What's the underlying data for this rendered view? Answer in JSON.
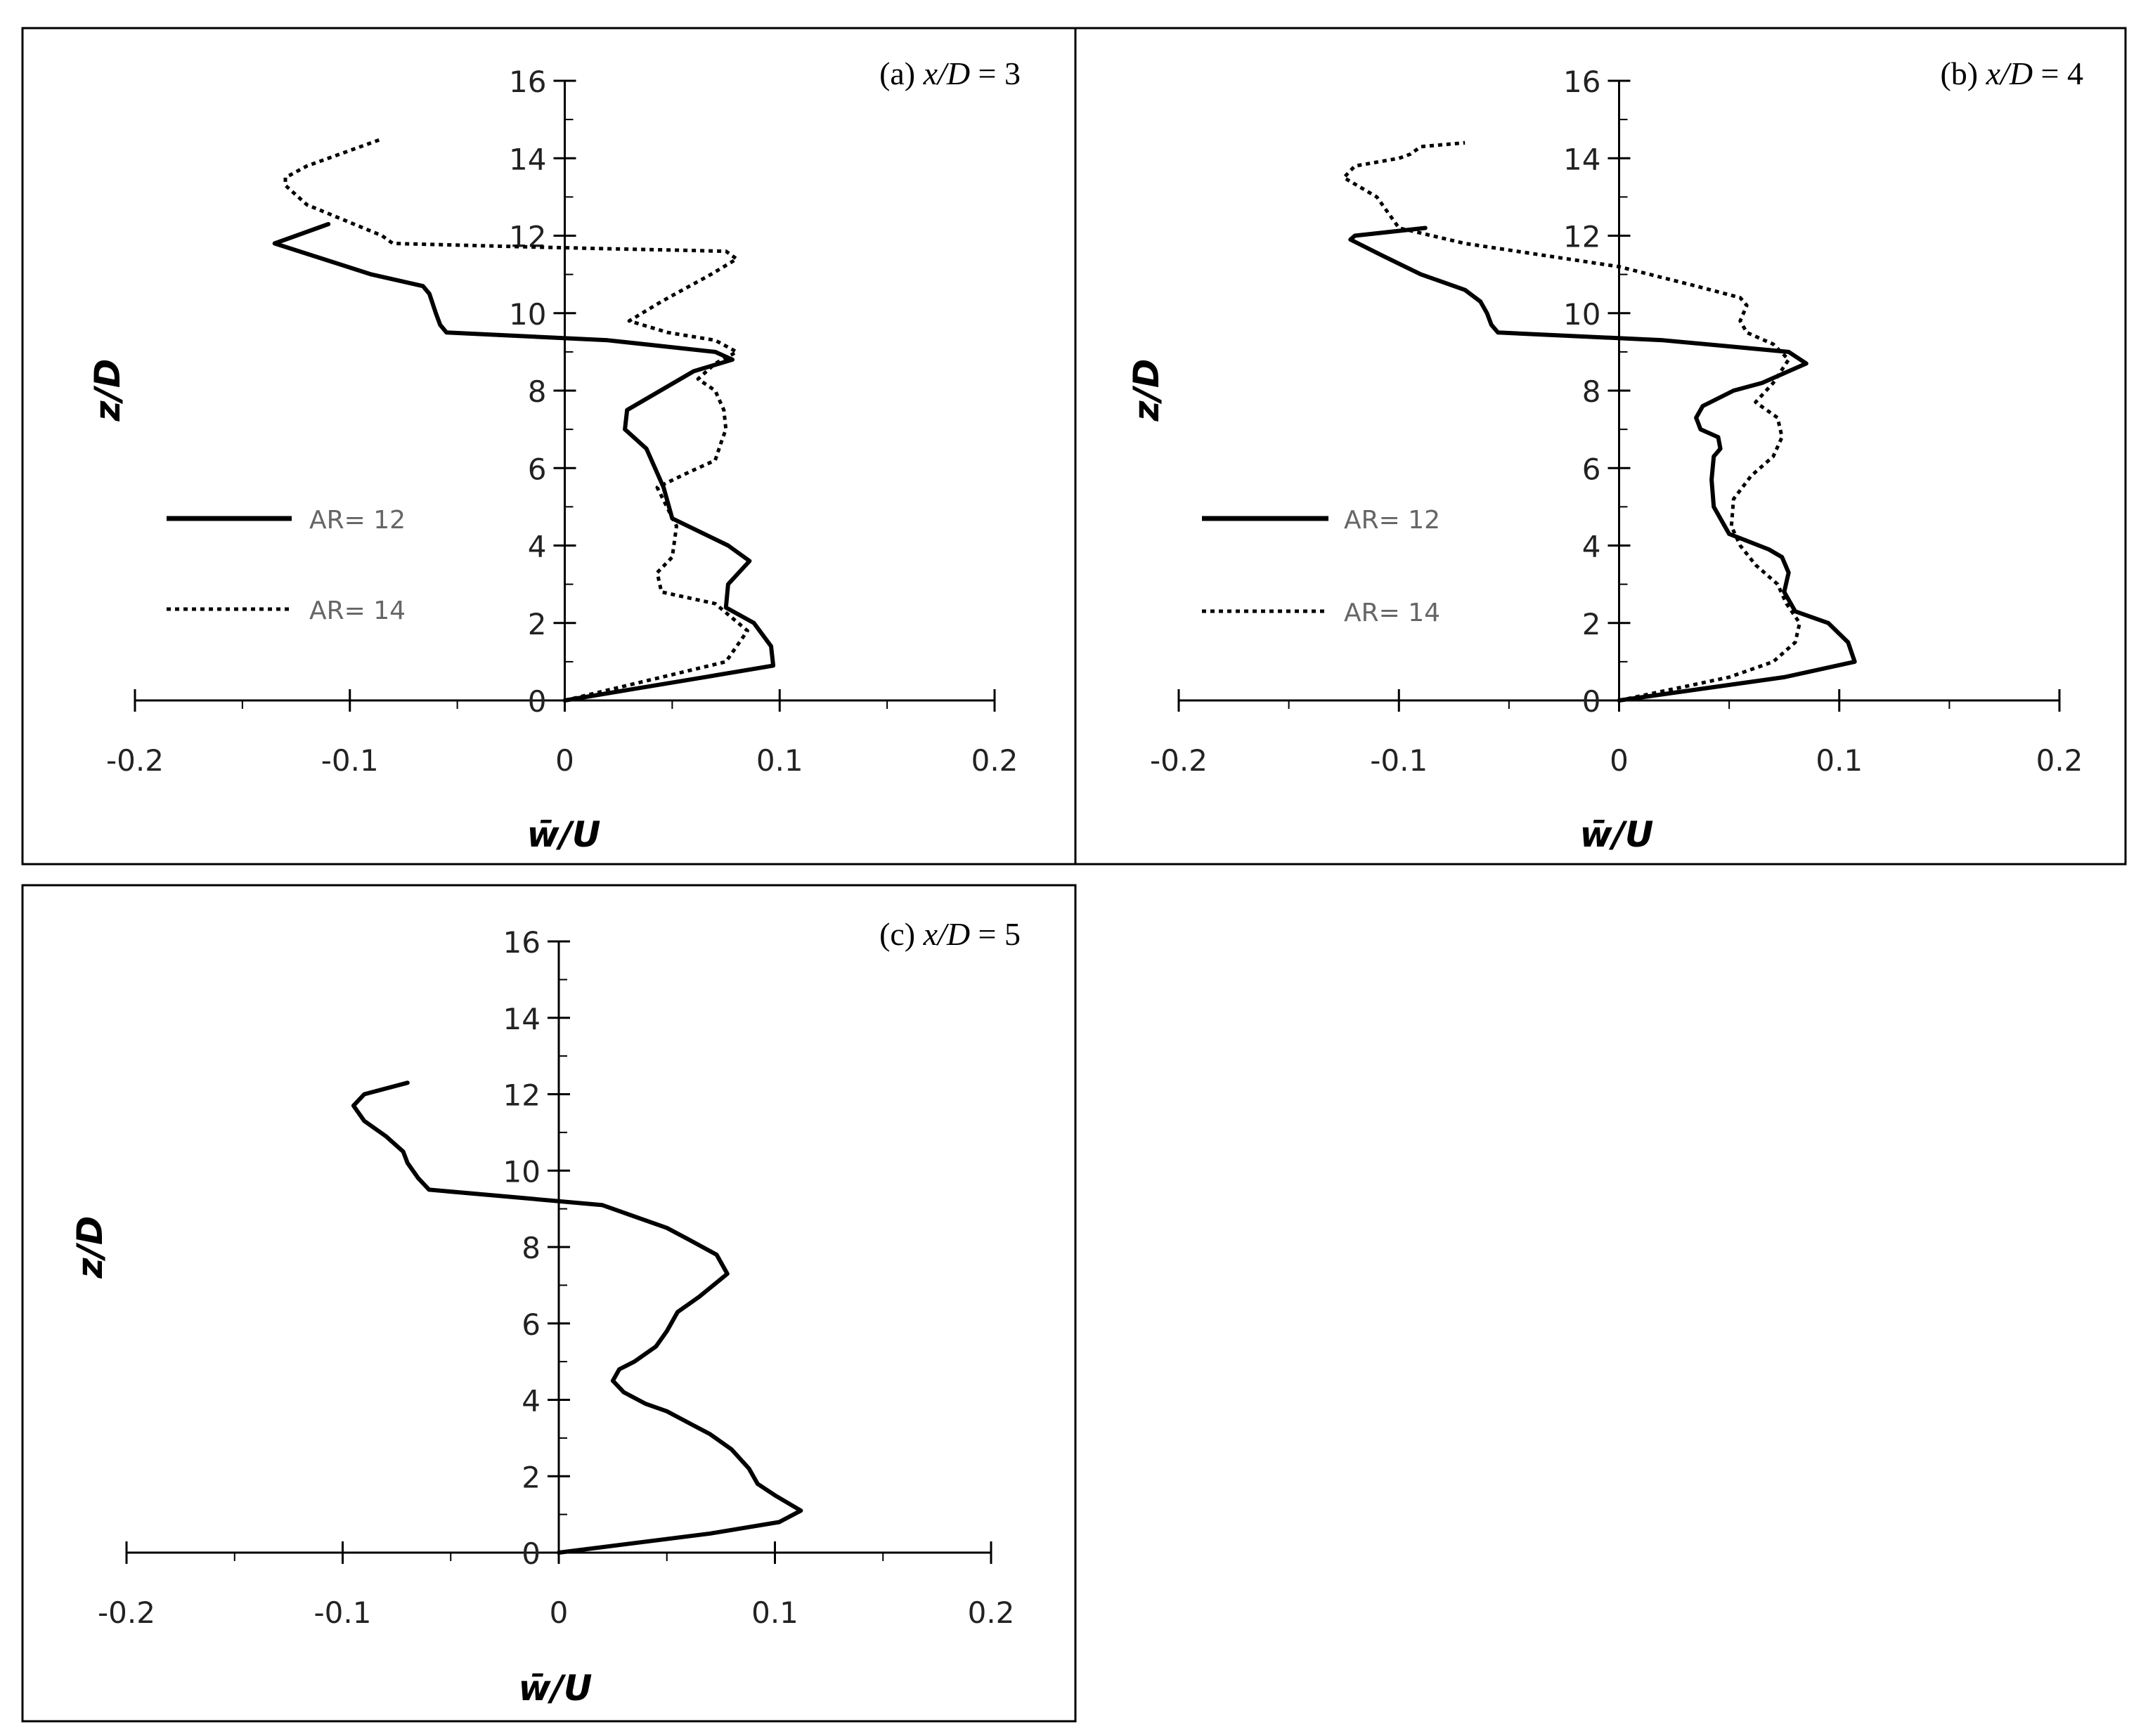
{
  "chart_data": [
    {
      "type": "line",
      "panel_label": "(a) ",
      "panel_var": "x/D",
      "panel_value": " = 3",
      "xlabel": "w̄/U",
      "ylabel": "z/D",
      "xlim": [
        -0.2,
        0.2
      ],
      "ylim": [
        0,
        16
      ],
      "xticks": [
        -0.2,
        -0.1,
        0,
        0.1,
        0.2
      ],
      "xtick_labels": [
        "-0.2",
        "-0.1",
        "0",
        "0.1",
        "0.2"
      ],
      "yticks": [
        0,
        2,
        4,
        6,
        8,
        10,
        12,
        14,
        16
      ],
      "ytick_labels": [
        "0",
        "2",
        "4",
        "6",
        "8",
        "10",
        "12",
        "14",
        "16"
      ],
      "legend": "left",
      "series": [
        {
          "name": "AR= 12",
          "style": "solid",
          "x": [
            0,
            0.065,
            0.097,
            0.096,
            0.088,
            0.075,
            0.076,
            0.086,
            0.076,
            0.05,
            0.046,
            0.038,
            0.028,
            0.029,
            0.06,
            0.078,
            0.07,
            0.02,
            -0.055,
            -0.058,
            -0.06,
            -0.063,
            -0.066,
            -0.09,
            -0.135,
            -0.13,
            -0.11
          ],
          "y": [
            0,
            0.6,
            0.9,
            1.4,
            2.0,
            2.4,
            3.0,
            3.6,
            4.0,
            4.7,
            5.5,
            6.5,
            7.0,
            7.5,
            8.5,
            8.8,
            9.0,
            9.3,
            9.5,
            9.7,
            10.0,
            10.5,
            10.7,
            11.0,
            11.8,
            11.9,
            12.3
          ]
        },
        {
          "name": "AR= 14",
          "style": "dotted",
          "x": [
            0,
            0.075,
            0.085,
            0.07,
            0.045,
            0.043,
            0.05,
            0.052,
            0.043,
            0.058,
            0.07,
            0.073,
            0.075,
            0.074,
            0.07,
            0.062,
            0.07,
            0.08,
            0.07,
            0.048,
            0.03,
            0.045,
            0.068,
            0.08,
            0.075,
            -0.01,
            -0.08,
            -0.085,
            -0.12,
            -0.13,
            -0.13,
            -0.12,
            -0.085
          ],
          "y": [
            0,
            1.0,
            1.8,
            2.5,
            2.8,
            3.3,
            3.7,
            4.5,
            5.5,
            5.9,
            6.2,
            6.7,
            7.0,
            7.5,
            8.0,
            8.3,
            8.7,
            9.0,
            9.3,
            9.5,
            9.8,
            10.3,
            11.0,
            11.4,
            11.6,
            11.7,
            11.8,
            12.0,
            12.8,
            13.3,
            13.5,
            13.8,
            14.5
          ]
        }
      ]
    },
    {
      "type": "line",
      "panel_label": "(b) ",
      "panel_var": "x/D",
      "panel_value": " = 4",
      "xlabel": "w̄/U",
      "ylabel": "z/D",
      "xlim": [
        -0.2,
        0.2
      ],
      "ylim": [
        0,
        16
      ],
      "xticks": [
        -0.2,
        -0.1,
        0,
        0.1,
        0.2
      ],
      "xtick_labels": [
        "-0.2",
        "-0.1",
        "0",
        "0.1",
        "0.2"
      ],
      "yticks": [
        0,
        2,
        4,
        6,
        8,
        10,
        12,
        14,
        16
      ],
      "ytick_labels": [
        "0",
        "2",
        "4",
        "6",
        "8",
        "10",
        "12",
        "14",
        "16"
      ],
      "legend": "left",
      "series": [
        {
          "name": "AR= 12",
          "style": "solid",
          "x": [
            0,
            0.075,
            0.107,
            0.104,
            0.095,
            0.08,
            0.075,
            0.077,
            0.074,
            0.068,
            0.05,
            0.043,
            0.042,
            0.043,
            0.046,
            0.045,
            0.037,
            0.035,
            0.038,
            0.052,
            0.065,
            0.085,
            0.077,
            0.02,
            -0.055,
            -0.058,
            -0.06,
            -0.063,
            -0.07,
            -0.08,
            -0.09,
            -0.108,
            -0.122,
            -0.12,
            -0.088
          ],
          "y": [
            0,
            0.6,
            1.0,
            1.5,
            2.0,
            2.3,
            2.8,
            3.3,
            3.7,
            3.9,
            4.3,
            5.0,
            5.7,
            6.3,
            6.5,
            6.8,
            7.0,
            7.3,
            7.6,
            8.0,
            8.2,
            8.7,
            9.0,
            9.3,
            9.5,
            9.7,
            10.0,
            10.3,
            10.6,
            10.8,
            11.0,
            11.5,
            11.9,
            12.0,
            12.2
          ]
        },
        {
          "name": "AR= 14",
          "style": "dotted",
          "x": [
            0,
            0.05,
            0.07,
            0.08,
            0.082,
            0.076,
            0.072,
            0.062,
            0.055,
            0.051,
            0.052,
            0.06,
            0.07,
            0.074,
            0.072,
            0.062,
            0.07,
            0.077,
            0.07,
            0.058,
            0.055,
            0.058,
            0.055,
            0.035,
            0.0,
            -0.07,
            -0.1,
            -0.105,
            -0.11,
            -0.125,
            -0.12,
            -0.1,
            -0.095,
            -0.09,
            -0.07
          ],
          "y": [
            0,
            0.6,
            1.0,
            1.5,
            2.0,
            2.5,
            3.0,
            3.5,
            4.0,
            4.5,
            5.2,
            5.8,
            6.3,
            6.8,
            7.3,
            7.7,
            8.2,
            8.8,
            9.2,
            9.5,
            9.8,
            10.2,
            10.4,
            10.7,
            11.2,
            11.8,
            12.2,
            12.6,
            13.0,
            13.5,
            13.8,
            14.0,
            14.1,
            14.3,
            14.4
          ]
        }
      ]
    },
    {
      "type": "line",
      "panel_label": "(c) ",
      "panel_var": "x/D",
      "panel_value": " = 5",
      "xlabel": "w̄/U",
      "ylabel": "z/D",
      "xlim": [
        -0.2,
        0.2
      ],
      "ylim": [
        0,
        16
      ],
      "xticks": [
        -0.2,
        -0.1,
        0,
        0.1,
        0.2
      ],
      "xtick_labels": [
        "-0.2",
        "-0.1",
        "0",
        "0.1",
        "0.2"
      ],
      "yticks": [
        0,
        2,
        4,
        6,
        8,
        10,
        12,
        14,
        16
      ],
      "ytick_labels": [
        "0",
        "2",
        "4",
        "6",
        "8",
        "10",
        "12",
        "14",
        "16"
      ],
      "legend": "none",
      "series": [
        {
          "name": "",
          "style": "solid",
          "x": [
            0,
            0.07,
            0.102,
            0.112,
            0.1,
            0.092,
            0.088,
            0.08,
            0.07,
            0.06,
            0.05,
            0.04,
            0.03,
            0.025,
            0.028,
            0.035,
            0.045,
            0.05,
            0.055,
            0.065,
            0.078,
            0.073,
            0.06,
            0.05,
            0.03,
            0.02,
            -0.02,
            -0.06,
            -0.065,
            -0.07,
            -0.072,
            -0.08,
            -0.09,
            -0.095,
            -0.09,
            -0.07
          ],
          "y": [
            0,
            0.5,
            0.8,
            1.1,
            1.5,
            1.8,
            2.2,
            2.7,
            3.1,
            3.4,
            3.7,
            3.9,
            4.2,
            4.5,
            4.8,
            5.0,
            5.4,
            5.8,
            6.3,
            6.7,
            7.3,
            7.8,
            8.2,
            8.5,
            8.9,
            9.1,
            9.3,
            9.5,
            9.8,
            10.2,
            10.5,
            10.9,
            11.3,
            11.7,
            12.0,
            12.3
          ]
        }
      ]
    }
  ]
}
